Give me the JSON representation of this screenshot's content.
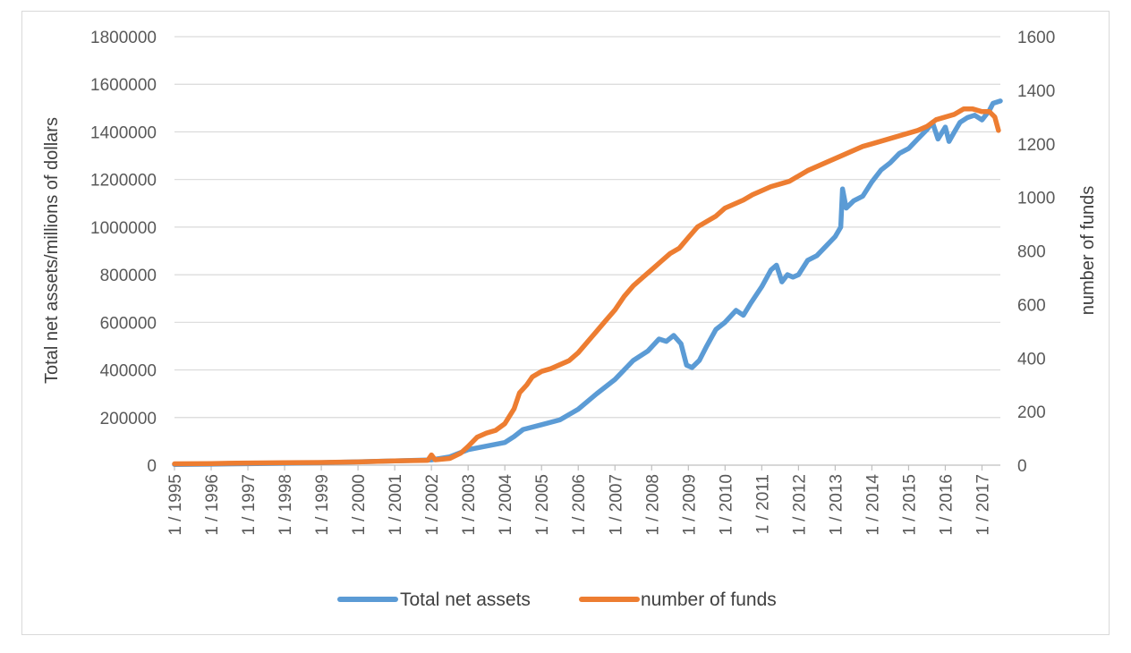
{
  "chart_data": {
    "type": "line",
    "title": "",
    "xlabel": "",
    "ylabel": "Total net assets/millions of dollars",
    "y2label": "number of funds",
    "ylim": [
      0,
      1800000
    ],
    "y2lim": [
      0,
      1600
    ],
    "y_ticks": [
      "0",
      "200000",
      "400000",
      "600000",
      "800000",
      "1000000",
      "1200000",
      "1400000",
      "1600000",
      "1800000"
    ],
    "y2_ticks": [
      "0",
      "200",
      "400",
      "600",
      "800",
      "1000",
      "1200",
      "1400",
      "1600"
    ],
    "x_ticks": [
      "1 / 1995",
      "1 / 1996",
      "1 / 1997",
      "1 / 1998",
      "1 / 1999",
      "1 / 2000",
      "1 / 2001",
      "1 / 2002",
      "1 / 2003",
      "1 / 2004",
      "1 / 2005",
      "1 / 2006",
      "1 / 2007",
      "1 / 2008",
      "1 / 2009",
      "1 / 2010",
      "1 / 2011",
      "1 / 2012",
      "1 / 2013",
      "1 / 2014",
      "1 / 2015",
      "1 / 2016",
      "1 / 2017"
    ],
    "xlim": [
      1995.0,
      2017.5
    ],
    "grid": true,
    "legend_position": "bottom",
    "series": [
      {
        "name": "Total net assets",
        "axis": "left",
        "color": "#5b9bd5",
        "x": [
          1995.0,
          1996.0,
          1997.0,
          1998.0,
          1999.0,
          2000.0,
          2001.0,
          2002.0,
          2002.5,
          2003.0,
          2003.5,
          2004.0,
          2004.25,
          2004.5,
          2005.0,
          2005.5,
          2006.0,
          2006.5,
          2007.0,
          2007.5,
          2007.9,
          2008.2,
          2008.4,
          2008.6,
          2008.8,
          2008.95,
          2009.1,
          2009.3,
          2009.5,
          2009.75,
          2010.0,
          2010.3,
          2010.5,
          2010.7,
          2011.0,
          2011.25,
          2011.4,
          2011.55,
          2011.7,
          2011.85,
          2012.0,
          2012.25,
          2012.5,
          2012.75,
          2013.0,
          2013.15,
          2013.2,
          2013.3,
          2013.5,
          2013.75,
          2014.0,
          2014.25,
          2014.5,
          2014.75,
          2015.0,
          2015.25,
          2015.5,
          2015.65,
          2015.8,
          2016.0,
          2016.1,
          2016.25,
          2016.4,
          2016.6,
          2016.8,
          2017.0,
          2017.2,
          2017.3,
          2017.5
        ],
        "y": [
          3000,
          4000,
          6000,
          8000,
          10000,
          14000,
          18000,
          22000,
          35000,
          65000,
          80000,
          95000,
          120000,
          150000,
          170000,
          190000,
          235000,
          300000,
          360000,
          440000,
          480000,
          530000,
          520000,
          545000,
          510000,
          420000,
          410000,
          440000,
          500000,
          570000,
          600000,
          650000,
          630000,
          680000,
          750000,
          820000,
          840000,
          770000,
          800000,
          790000,
          800000,
          860000,
          880000,
          920000,
          960000,
          1000000,
          1160000,
          1080000,
          1110000,
          1130000,
          1190000,
          1240000,
          1270000,
          1310000,
          1330000,
          1370000,
          1410000,
          1440000,
          1370000,
          1420000,
          1360000,
          1400000,
          1440000,
          1460000,
          1470000,
          1450000,
          1490000,
          1520000,
          1530000
        ]
      },
      {
        "name": "number of funds",
        "axis": "right",
        "color": "#ed7d31",
        "x": [
          1995.0,
          1996.0,
          1997.0,
          1998.0,
          1999.0,
          2000.0,
          2001.0,
          2001.9,
          2002.0,
          2002.1,
          2002.5,
          2002.8,
          2003.0,
          2003.25,
          2003.5,
          2003.75,
          2004.0,
          2004.25,
          2004.4,
          2004.6,
          2004.75,
          2005.0,
          2005.25,
          2005.5,
          2005.75,
          2006.0,
          2006.25,
          2006.5,
          2006.75,
          2007.0,
          2007.25,
          2007.5,
          2007.75,
          2008.0,
          2008.25,
          2008.5,
          2008.75,
          2009.0,
          2009.25,
          2009.5,
          2009.75,
          2010.0,
          2010.25,
          2010.5,
          2010.75,
          2011.0,
          2011.25,
          2011.5,
          2011.75,
          2012.0,
          2012.25,
          2012.5,
          2012.75,
          2013.0,
          2013.25,
          2013.5,
          2013.75,
          2014.0,
          2014.25,
          2014.5,
          2014.75,
          2015.0,
          2015.25,
          2015.5,
          2015.75,
          2016.0,
          2016.25,
          2016.5,
          2016.75,
          2017.0,
          2017.2,
          2017.35,
          2017.45
        ],
        "y": [
          5,
          6,
          8,
          9,
          10,
          12,
          16,
          18,
          38,
          20,
          25,
          45,
          70,
          105,
          120,
          130,
          155,
          210,
          270,
          300,
          330,
          350,
          360,
          375,
          390,
          420,
          460,
          500,
          540,
          580,
          630,
          670,
          700,
          730,
          760,
          790,
          810,
          850,
          890,
          910,
          930,
          960,
          975,
          990,
          1010,
          1025,
          1040,
          1050,
          1060,
          1080,
          1100,
          1115,
          1130,
          1145,
          1160,
          1175,
          1190,
          1200,
          1210,
          1220,
          1230,
          1240,
          1250,
          1265,
          1290,
          1300,
          1310,
          1330,
          1330,
          1320,
          1320,
          1300,
          1250
        ]
      }
    ]
  }
}
